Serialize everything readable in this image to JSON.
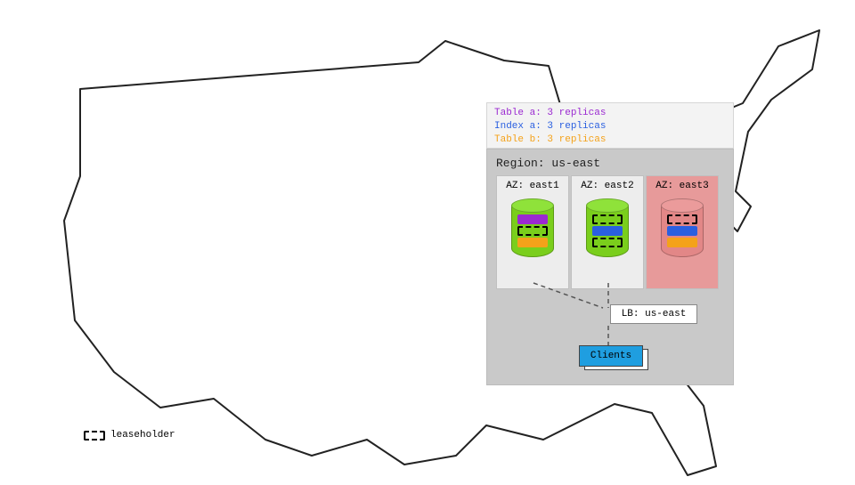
{
  "diagram": {
    "type": "infographic",
    "background_color": "#ffffff",
    "map_stroke": "#222222",
    "map_stroke_width": 2
  },
  "colors": {
    "table_a": "#9b2ad1",
    "index_a": "#2a5fe0",
    "table_b": "#f4a21a",
    "db_green_body": "#7ace1c",
    "db_green_top": "#8fe23a",
    "db_fail_body": "#e28787",
    "db_fail_top": "#eb9b9b",
    "legend_bg": "#f3f3f3",
    "region_bg": "#c9c9c9",
    "az_normal_bg": "#ededed",
    "az_fail_bg": "#e79a9a",
    "clients_fill": "#1f9ee0",
    "connector": "#555555"
  },
  "legend": {
    "rows": [
      {
        "label": "Table a: 3 replicas",
        "color_key": "table_a"
      },
      {
        "label": "Index a: 3 replicas",
        "color_key": "index_a"
      },
      {
        "label": "Table b: 3 replicas",
        "color_key": "table_b"
      }
    ]
  },
  "region": {
    "title": "Region: us-east",
    "lb_label": "LB: us-east",
    "clients_label": "Clients",
    "availability_zones": [
      {
        "label": "AZ: east1",
        "status": "normal",
        "slices": [
          {
            "color_key": "table_a",
            "leaseholder": false
          },
          {
            "color_key": "index_a",
            "leaseholder": true
          },
          {
            "color_key": "table_b",
            "leaseholder": false
          }
        ]
      },
      {
        "label": "AZ: east2",
        "status": "normal",
        "slices": [
          {
            "color_key": "table_a",
            "leaseholder": true
          },
          {
            "color_key": "index_a",
            "leaseholder": false
          },
          {
            "color_key": "table_b",
            "leaseholder": true
          }
        ]
      },
      {
        "label": "AZ: east3",
        "status": "fail",
        "slices": [
          {
            "color_key": "table_a",
            "leaseholder": false
          },
          {
            "color_key": "index_a",
            "leaseholder": false
          },
          {
            "color_key": "table_b",
            "leaseholder": false
          }
        ]
      }
    ]
  },
  "leaseholder_legend": "leaseholder"
}
